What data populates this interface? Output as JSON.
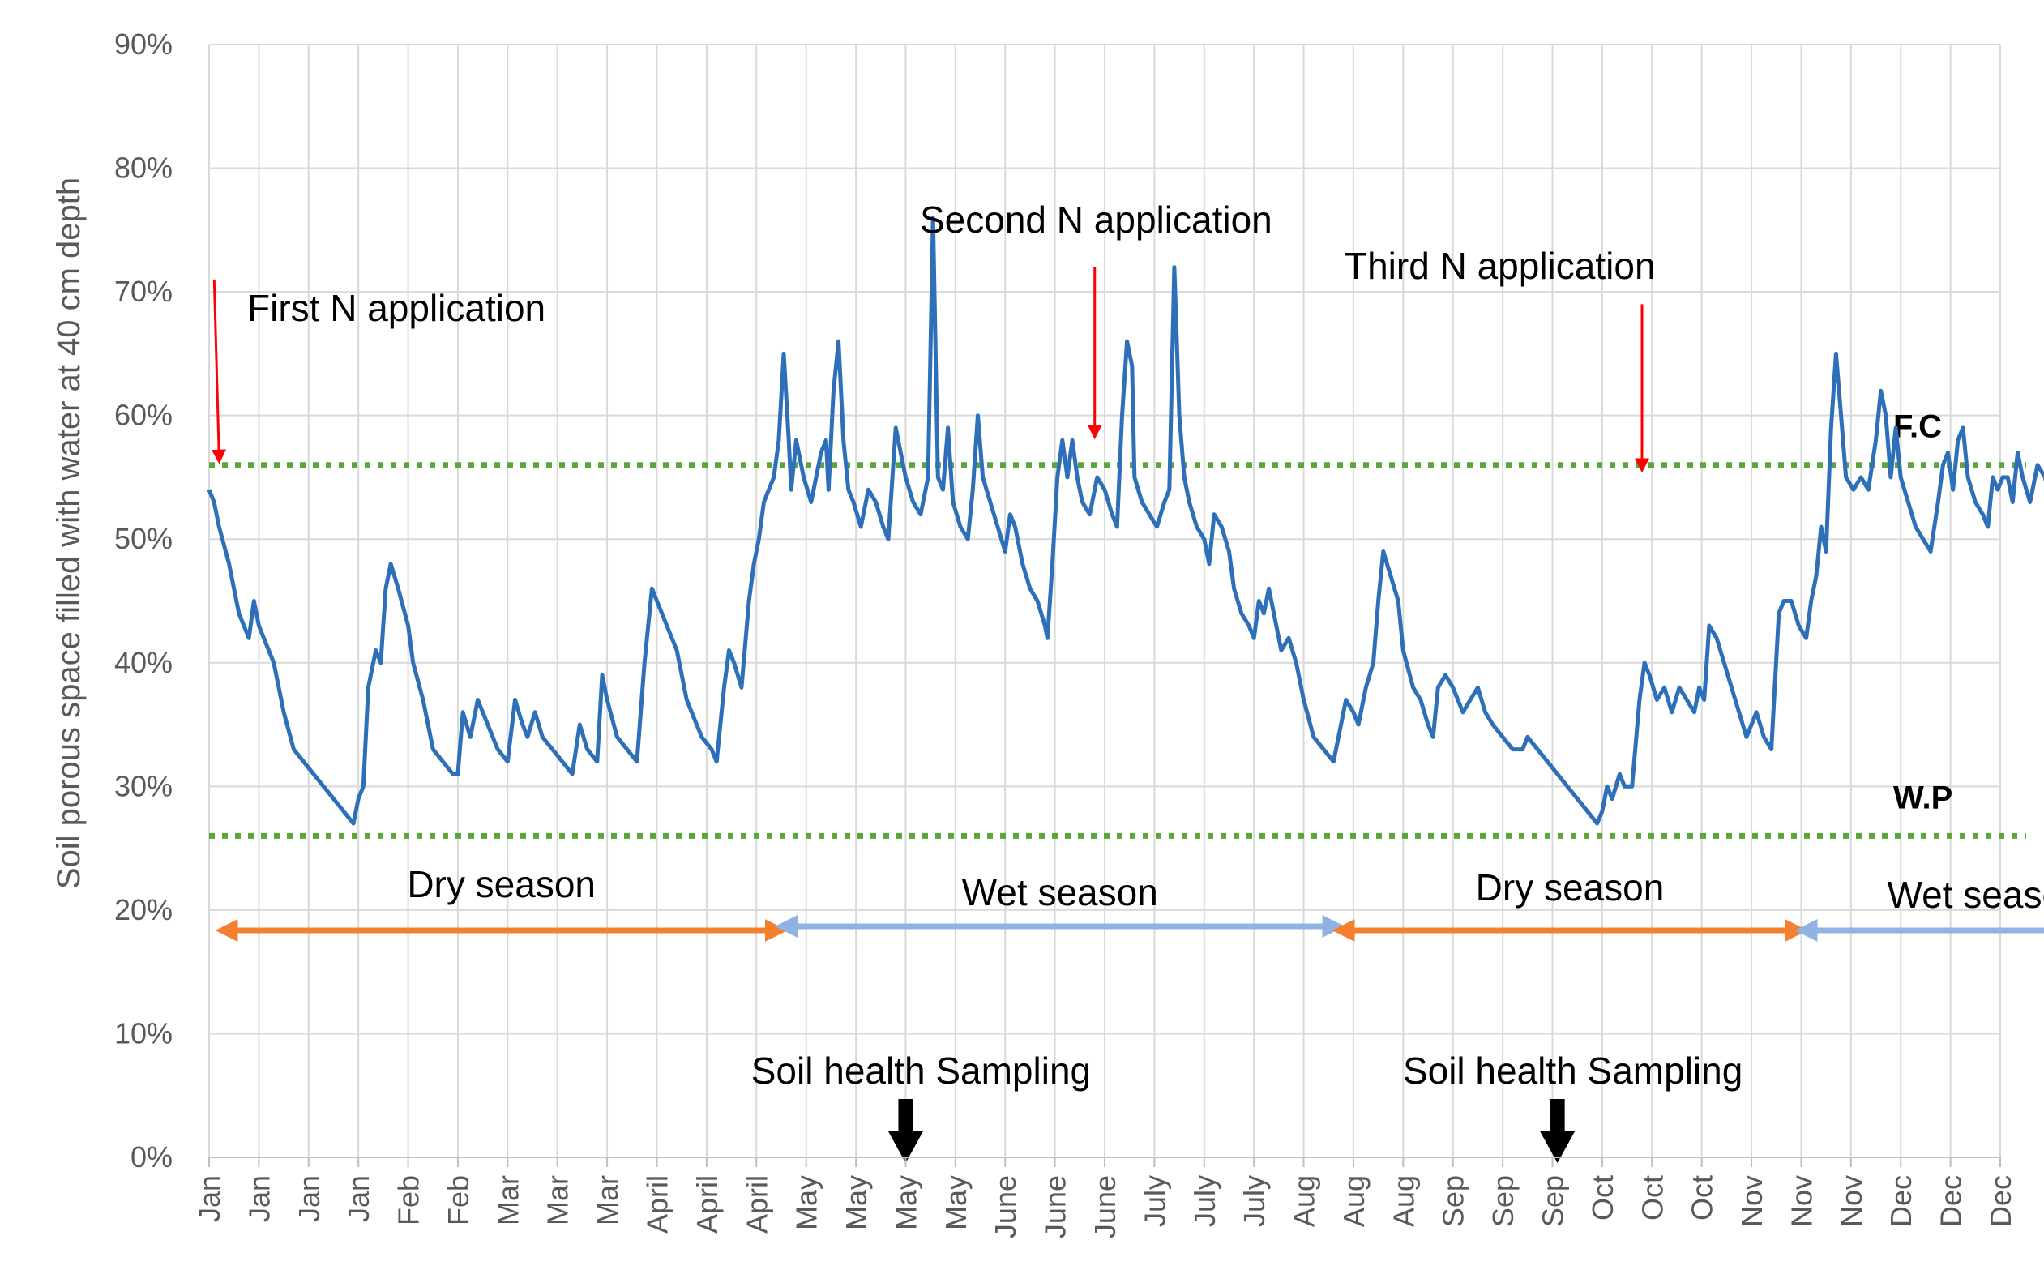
{
  "chart_data": {
    "type": "line",
    "ylabel": "Soil porous space filled with water at 40 cm depth",
    "y_ticks": [
      "0%",
      "10%",
      "20%",
      "30%",
      "40%",
      "50%",
      "60%",
      "70%",
      "80%",
      "90%"
    ],
    "ylim": [
      0,
      90
    ],
    "x_tick_labels": [
      "Jan",
      "Jan",
      "Jan",
      "Jan",
      "Feb",
      "Feb",
      "Mar",
      "Mar",
      "Mar",
      "April",
      "April",
      "April",
      "May",
      "May",
      "May",
      "May",
      "June",
      "June",
      "June",
      "July",
      "July",
      "July",
      "Aug",
      "Aug",
      "Aug",
      "Sep",
      "Sep",
      "Sep",
      "Oct",
      "Oct",
      "Oct",
      "Nov",
      "Nov",
      "Nov",
      "Dec",
      "Dec",
      "Dec"
    ],
    "reference_lines": [
      {
        "label": "F.C",
        "value": 56,
        "color": "#5aa63c"
      },
      {
        "label": "W.P",
        "value": 26,
        "color": "#5aa63c"
      }
    ],
    "series": [
      {
        "name": "Soil porous space filled with water",
        "color": "#2e6fba",
        "points": [
          [
            0.0,
            54
          ],
          [
            0.1,
            53
          ],
          [
            0.2,
            51
          ],
          [
            0.4,
            48
          ],
          [
            0.5,
            46
          ],
          [
            0.6,
            44
          ],
          [
            0.8,
            42
          ],
          [
            0.9,
            45
          ],
          [
            1.0,
            43
          ],
          [
            1.1,
            42
          ],
          [
            1.3,
            40
          ],
          [
            1.5,
            36
          ],
          [
            1.7,
            33
          ],
          [
            1.9,
            32
          ],
          [
            2.1,
            31
          ],
          [
            2.3,
            30
          ],
          [
            2.5,
            29
          ],
          [
            2.7,
            28
          ],
          [
            2.9,
            27
          ],
          [
            3.0,
            29
          ],
          [
            3.1,
            30
          ],
          [
            3.2,
            38
          ],
          [
            3.35,
            41
          ],
          [
            3.45,
            40
          ],
          [
            3.55,
            46
          ],
          [
            3.65,
            48
          ],
          [
            3.8,
            46
          ],
          [
            4.0,
            43
          ],
          [
            4.1,
            40
          ],
          [
            4.3,
            37
          ],
          [
            4.5,
            33
          ],
          [
            4.7,
            32
          ],
          [
            4.9,
            31
          ],
          [
            5.0,
            31
          ],
          [
            5.1,
            36
          ],
          [
            5.25,
            34
          ],
          [
            5.4,
            37
          ],
          [
            5.6,
            35
          ],
          [
            5.8,
            33
          ],
          [
            6.0,
            32
          ],
          [
            6.15,
            37
          ],
          [
            6.3,
            35
          ],
          [
            6.4,
            34
          ],
          [
            6.55,
            36
          ],
          [
            6.7,
            34
          ],
          [
            6.9,
            33
          ],
          [
            7.1,
            32
          ],
          [
            7.3,
            31
          ],
          [
            7.45,
            35
          ],
          [
            7.6,
            33
          ],
          [
            7.8,
            32
          ],
          [
            7.9,
            39
          ],
          [
            8.0,
            37
          ],
          [
            8.2,
            34
          ],
          [
            8.4,
            33
          ],
          [
            8.6,
            32
          ],
          [
            8.75,
            40
          ],
          [
            8.9,
            46
          ],
          [
            9.0,
            45
          ],
          [
            9.2,
            43
          ],
          [
            9.4,
            41
          ],
          [
            9.6,
            37
          ],
          [
            9.8,
            35
          ],
          [
            9.9,
            34
          ],
          [
            10.1,
            33
          ],
          [
            10.2,
            32
          ],
          [
            10.35,
            38
          ],
          [
            10.45,
            41
          ],
          [
            10.55,
            40
          ],
          [
            10.7,
            38
          ],
          [
            10.85,
            45
          ],
          [
            10.95,
            48
          ],
          [
            11.05,
            50
          ],
          [
            11.15,
            53
          ],
          [
            11.25,
            54
          ],
          [
            11.35,
            55
          ],
          [
            11.45,
            58
          ],
          [
            11.55,
            65
          ],
          [
            11.65,
            58
          ],
          [
            11.7,
            54
          ],
          [
            11.8,
            58
          ],
          [
            11.95,
            55
          ],
          [
            12.1,
            53
          ],
          [
            12.3,
            57
          ],
          [
            12.4,
            58
          ],
          [
            12.45,
            54
          ],
          [
            12.55,
            62
          ],
          [
            12.65,
            66
          ],
          [
            12.75,
            58
          ],
          [
            12.85,
            54
          ],
          [
            12.95,
            53
          ],
          [
            13.1,
            51
          ],
          [
            13.25,
            54
          ],
          [
            13.4,
            53
          ],
          [
            13.55,
            51
          ],
          [
            13.65,
            50
          ],
          [
            13.8,
            59
          ],
          [
            13.9,
            57
          ],
          [
            14.0,
            55
          ],
          [
            14.15,
            53
          ],
          [
            14.3,
            52
          ],
          [
            14.45,
            55
          ],
          [
            14.55,
            76
          ],
          [
            14.65,
            55
          ],
          [
            14.75,
            54
          ],
          [
            14.85,
            59
          ],
          [
            14.95,
            53
          ],
          [
            15.1,
            51
          ],
          [
            15.25,
            50
          ],
          [
            15.35,
            54
          ],
          [
            15.45,
            60
          ],
          [
            15.55,
            55
          ],
          [
            15.7,
            53
          ],
          [
            15.85,
            51
          ],
          [
            16.0,
            49
          ],
          [
            16.1,
            52
          ],
          [
            16.2,
            51
          ],
          [
            16.35,
            48
          ],
          [
            16.5,
            46
          ],
          [
            16.65,
            45
          ],
          [
            16.8,
            43
          ],
          [
            16.85,
            42
          ],
          [
            16.95,
            48
          ],
          [
            17.05,
            55
          ],
          [
            17.15,
            58
          ],
          [
            17.25,
            55
          ],
          [
            17.35,
            58
          ],
          [
            17.45,
            55
          ],
          [
            17.55,
            53
          ],
          [
            17.7,
            52
          ],
          [
            17.85,
            55
          ],
          [
            18.0,
            54
          ],
          [
            18.15,
            52
          ],
          [
            18.25,
            51
          ],
          [
            18.35,
            60
          ],
          [
            18.45,
            66
          ],
          [
            18.55,
            64
          ],
          [
            18.6,
            55
          ],
          [
            18.75,
            53
          ],
          [
            18.9,
            52
          ],
          [
            19.05,
            51
          ],
          [
            19.2,
            53
          ],
          [
            19.3,
            54
          ],
          [
            19.4,
            72
          ],
          [
            19.5,
            60
          ],
          [
            19.6,
            55
          ],
          [
            19.7,
            53
          ],
          [
            19.85,
            51
          ],
          [
            20.0,
            50
          ],
          [
            20.1,
            48
          ],
          [
            20.2,
            52
          ],
          [
            20.35,
            51
          ],
          [
            20.5,
            49
          ],
          [
            20.6,
            46
          ],
          [
            20.75,
            44
          ],
          [
            20.9,
            43
          ],
          [
            21.0,
            42
          ],
          [
            21.1,
            45
          ],
          [
            21.2,
            44
          ],
          [
            21.3,
            46
          ],
          [
            21.4,
            44
          ],
          [
            21.55,
            41
          ],
          [
            21.7,
            42
          ],
          [
            21.85,
            40
          ],
          [
            22.0,
            37
          ],
          [
            22.2,
            34
          ],
          [
            22.4,
            33
          ],
          [
            22.6,
            32
          ],
          [
            22.75,
            35
          ],
          [
            22.85,
            37
          ],
          [
            23.0,
            36
          ],
          [
            23.1,
            35
          ],
          [
            23.25,
            38
          ],
          [
            23.4,
            40
          ],
          [
            23.5,
            45
          ],
          [
            23.6,
            49
          ],
          [
            23.75,
            47
          ],
          [
            23.9,
            45
          ],
          [
            24.0,
            41
          ],
          [
            24.2,
            38
          ],
          [
            24.35,
            37
          ],
          [
            24.5,
            35
          ],
          [
            24.6,
            34
          ],
          [
            24.7,
            38
          ],
          [
            24.85,
            39
          ],
          [
            25.0,
            38
          ],
          [
            25.2,
            36
          ],
          [
            25.35,
            37
          ],
          [
            25.5,
            38
          ],
          [
            25.65,
            36
          ],
          [
            25.8,
            35
          ],
          [
            26.0,
            34
          ],
          [
            26.2,
            33
          ],
          [
            26.4,
            33
          ],
          [
            26.5,
            34
          ],
          [
            26.7,
            33
          ],
          [
            26.9,
            32
          ],
          [
            27.1,
            31
          ],
          [
            27.3,
            30
          ],
          [
            27.5,
            29
          ],
          [
            27.7,
            28
          ],
          [
            27.9,
            27
          ],
          [
            28.0,
            28
          ],
          [
            28.1,
            30
          ],
          [
            28.2,
            29
          ],
          [
            28.35,
            31
          ],
          [
            28.45,
            30
          ],
          [
            28.6,
            30
          ],
          [
            28.75,
            37
          ],
          [
            28.85,
            40
          ],
          [
            28.95,
            39
          ],
          [
            29.1,
            37
          ],
          [
            29.25,
            38
          ],
          [
            29.4,
            36
          ],
          [
            29.55,
            38
          ],
          [
            29.7,
            37
          ],
          [
            29.85,
            36
          ],
          [
            29.95,
            38
          ],
          [
            30.05,
            37
          ],
          [
            30.15,
            43
          ],
          [
            30.3,
            42
          ],
          [
            30.45,
            40
          ],
          [
            30.6,
            38
          ],
          [
            30.75,
            36
          ],
          [
            30.9,
            34
          ],
          [
            31.0,
            35
          ],
          [
            31.1,
            36
          ],
          [
            31.25,
            34
          ],
          [
            31.4,
            33
          ],
          [
            31.55,
            44
          ],
          [
            31.65,
            45
          ],
          [
            31.8,
            45
          ],
          [
            31.95,
            43
          ],
          [
            32.1,
            42
          ],
          [
            32.2,
            45
          ],
          [
            32.3,
            47
          ],
          [
            32.4,
            51
          ],
          [
            32.5,
            49
          ],
          [
            32.6,
            59
          ],
          [
            32.7,
            65
          ],
          [
            32.8,
            60
          ],
          [
            32.9,
            55
          ],
          [
            33.05,
            54
          ],
          [
            33.2,
            55
          ],
          [
            33.35,
            54
          ],
          [
            33.5,
            58
          ],
          [
            33.6,
            62
          ],
          [
            33.7,
            60
          ],
          [
            33.8,
            55
          ],
          [
            33.9,
            59
          ],
          [
            34.0,
            55
          ],
          [
            34.15,
            53
          ],
          [
            34.3,
            51
          ],
          [
            34.45,
            50
          ],
          [
            34.6,
            49
          ],
          [
            34.75,
            53
          ],
          [
            34.85,
            56
          ],
          [
            34.95,
            57
          ],
          [
            35.05,
            54
          ],
          [
            35.15,
            58
          ],
          [
            35.25,
            59
          ],
          [
            35.35,
            55
          ],
          [
            35.5,
            53
          ],
          [
            35.65,
            52
          ],
          [
            35.75,
            51
          ],
          [
            35.85,
            55
          ],
          [
            35.95,
            54
          ],
          [
            36.05,
            55
          ],
          [
            36.15,
            55
          ],
          [
            36.25,
            53
          ],
          [
            36.35,
            57
          ],
          [
            36.45,
            55
          ],
          [
            36.6,
            53
          ],
          [
            36.75,
            56
          ],
          [
            36.9,
            55
          ],
          [
            37.0,
            53
          ],
          [
            37.15,
            51
          ],
          [
            37.3,
            49
          ],
          [
            37.45,
            47
          ],
          [
            37.6,
            45
          ],
          [
            37.75,
            44
          ],
          [
            37.9,
            42
          ],
          [
            38.0,
            43
          ],
          [
            38.1,
            44
          ],
          [
            38.2,
            43
          ],
          [
            38.35,
            41
          ],
          [
            38.5,
            40
          ],
          [
            38.6,
            39
          ],
          [
            38.75,
            44
          ],
          [
            38.9,
            43
          ],
          [
            39.05,
            41
          ],
          [
            39.15,
            40
          ],
          [
            39.25,
            43
          ],
          [
            39.35,
            43
          ],
          [
            39.5,
            48
          ]
        ]
      }
    ],
    "annotations": [
      {
        "text": "First N application",
        "arrow_x": 0.2,
        "arrow_from_y": 71,
        "arrow_to_y": 56,
        "color": "#ff0000"
      },
      {
        "text": "Second N application",
        "arrow_x": 17.8,
        "arrow_from_y": 72,
        "arrow_to_y": 58,
        "color": "#ff0000"
      },
      {
        "text": "Third N application",
        "arrow_x": 28.8,
        "arrow_from_y": 69,
        "arrow_to_y": 55.3,
        "color": "#ff0000"
      }
    ],
    "sampling": [
      {
        "text": "Soil health Sampling",
        "x": 14.0
      },
      {
        "text": "Soil health Sampling",
        "x": 27.1
      }
    ],
    "seasons": [
      {
        "label": "Dry season",
        "x_start": 0.35,
        "x_end": 11.4,
        "color": "#f4802f"
      },
      {
        "label": "Wet season",
        "x_start": 11.6,
        "x_end": 22.6,
        "color": "#8fb3e3"
      },
      {
        "label": "Dry season",
        "x_start": 22.8,
        "x_end": 31.9,
        "color": "#f4802f"
      },
      {
        "label": "Wet season",
        "x_start": 32.1,
        "x_end": 39.3,
        "color": "#8fb3e3"
      }
    ]
  }
}
